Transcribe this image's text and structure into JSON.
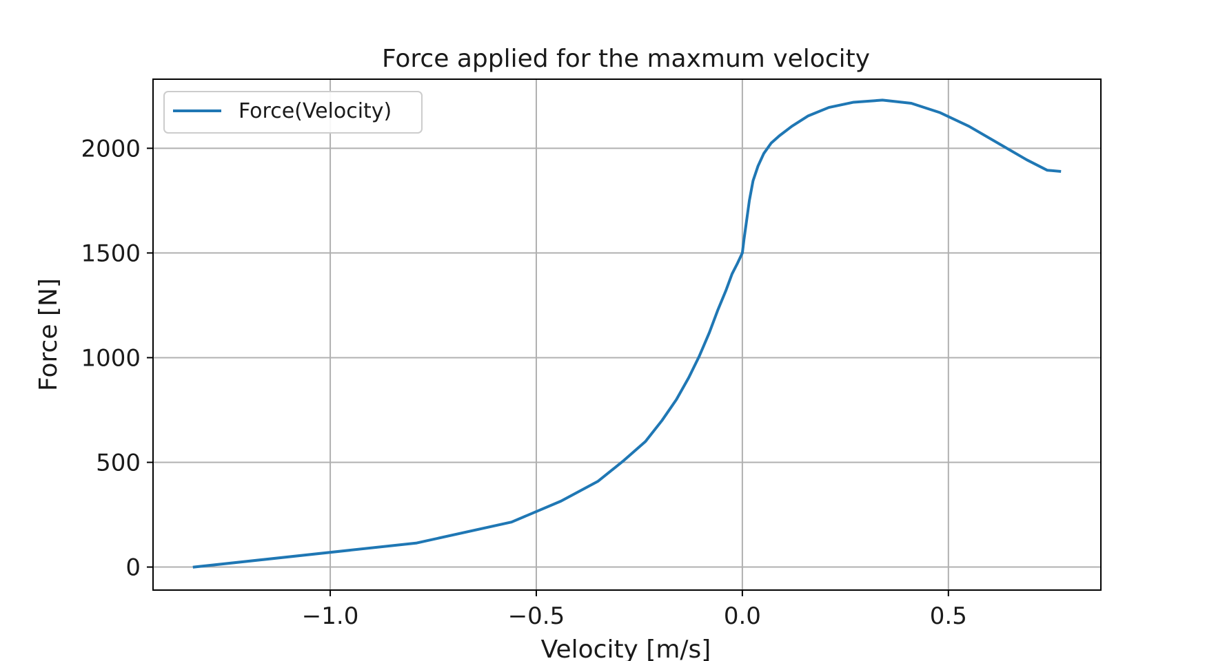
{
  "chart_data": {
    "type": "line",
    "title": "Force applied for the maxmum velocity",
    "xlabel": "Velocity [m/s]",
    "ylabel": "Force [N]",
    "xlim": [
      -1.43,
      0.87
    ],
    "ylim": [
      -110,
      2330
    ],
    "xticks": [
      -1.0,
      -0.5,
      0.0,
      0.5
    ],
    "xtick_labels": [
      "−1.0",
      "−0.5",
      "0.0",
      "0.5"
    ],
    "yticks": [
      0,
      500,
      1000,
      1500,
      2000
    ],
    "ytick_labels": [
      "0",
      "500",
      "1000",
      "1500",
      "2000"
    ],
    "grid": true,
    "legend_position": "upper-left",
    "series": [
      {
        "name": "Force(Velocity)",
        "color": "#1f77b4",
        "x": [
          -1.33,
          -0.79,
          -0.56,
          -0.44,
          -0.35,
          -0.29,
          -0.235,
          -0.195,
          -0.16,
          -0.13,
          -0.105,
          -0.08,
          -0.06,
          -0.04,
          -0.025,
          -0.012,
          0.0,
          0.004,
          0.01,
          0.017,
          0.026,
          0.038,
          0.052,
          0.07,
          0.09,
          0.12,
          0.16,
          0.21,
          0.27,
          0.34,
          0.41,
          0.48,
          0.55,
          0.62,
          0.69,
          0.74,
          0.77
        ],
        "y": [
          0,
          115,
          215,
          315,
          410,
          505,
          600,
          700,
          800,
          905,
          1005,
          1120,
          1225,
          1320,
          1400,
          1450,
          1500,
          1565,
          1650,
          1750,
          1845,
          1915,
          1975,
          2025,
          2060,
          2105,
          2155,
          2195,
          2220,
          2230,
          2215,
          2170,
          2105,
          2025,
          1945,
          1895,
          1890
        ]
      }
    ]
  }
}
